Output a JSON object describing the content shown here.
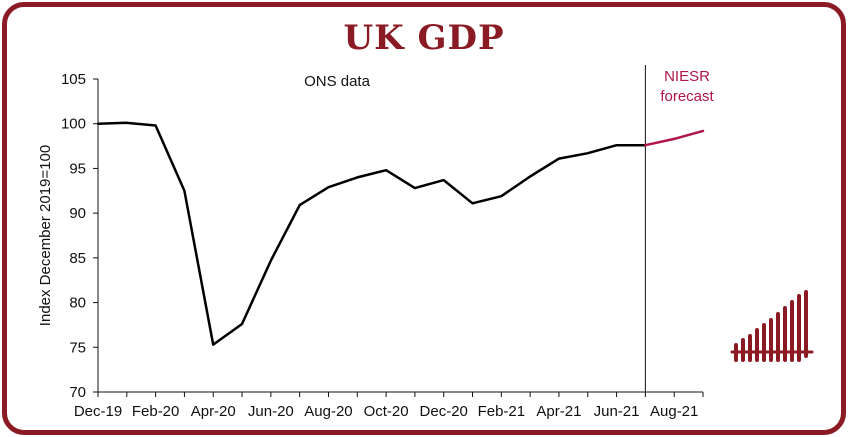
{
  "title": "UK GDP",
  "colors": {
    "brand": "#8a1b24",
    "ons_line": "#000000",
    "forecast_line": "#b0164a"
  },
  "logo": {
    "icon": "bars-logo-icon"
  },
  "chart_data": {
    "type": "line",
    "title": "UK GDP",
    "xlabel": "",
    "ylabel": "Index December 2019=100",
    "ylim": [
      70,
      105
    ],
    "yticks": [
      70,
      75,
      80,
      85,
      90,
      95,
      100,
      105
    ],
    "xlim": [
      "2019-12",
      "2021-09"
    ],
    "xtick_labels": [
      "Dec-19",
      "Feb-20",
      "Apr-20",
      "Jun-20",
      "Aug-20",
      "Oct-20",
      "Dec-20",
      "Feb-21",
      "Apr-21",
      "Jun-21",
      "Aug-21"
    ],
    "grid": false,
    "annotations": {
      "ons": "ONS data",
      "forecast_line1": "NIESR",
      "forecast_line2": "forecast"
    },
    "series": [
      {
        "x": [
          "2019-12",
          "2020-01",
          "2020-02",
          "2020-03",
          "2020-04",
          "2020-05",
          "2020-06",
          "2020-07",
          "2020-08",
          "2020-09",
          "2020-10",
          "2020-11",
          "2020-12",
          "2021-01",
          "2021-02",
          "2021-03",
          "2021-04",
          "2021-05",
          "2021-06",
          "2021-07"
        ],
        "values": [
          100,
          100.1,
          99.8,
          92.5,
          75.3,
          77.6,
          84.7,
          90.9,
          92.9,
          94.0,
          94.8,
          92.8,
          93.7,
          91.1,
          91.9,
          94.1,
          96.1,
          96.7,
          97.6,
          97.6
        ]
      },
      {
        "x": [
          "2021-07",
          "2021-08",
          "2021-09"
        ],
        "values": [
          97.6,
          98.3,
          99.2
        ]
      }
    ]
  }
}
